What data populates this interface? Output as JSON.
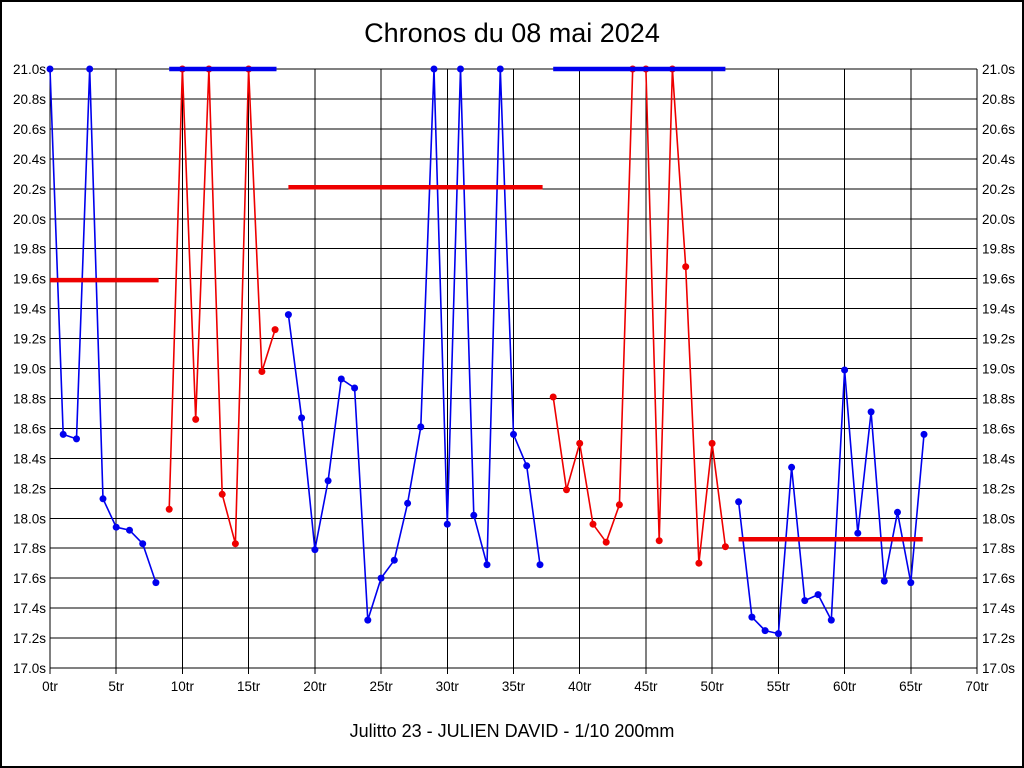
{
  "page": {
    "title": "Chronos du 08 mai 2024",
    "footer": "Julitto 23 - JULIEN DAVID - 1/10 200mm"
  },
  "colors": {
    "blue": "#0000ee",
    "red": "#ee0000",
    "grid": "#000000",
    "text": "#000000",
    "background": "#ffffff"
  },
  "chart_data": {
    "type": "line",
    "title": "Chronos du 08 mai 2024",
    "x_unit": "tr",
    "y_unit": "s",
    "xlim": [
      0,
      70
    ],
    "ylim": [
      17.0,
      21.0
    ],
    "grid": true,
    "legend": "none",
    "x_ticks": [
      0,
      5,
      10,
      15,
      20,
      25,
      30,
      35,
      40,
      45,
      50,
      55,
      60,
      65,
      70
    ],
    "x_tick_labels": [
      "0tr",
      "5tr",
      "10tr",
      "15tr",
      "20tr",
      "25tr",
      "30tr",
      "35tr",
      "40tr",
      "45tr",
      "50tr",
      "55tr",
      "60tr",
      "65tr",
      "70tr"
    ],
    "y_ticks": [
      21.0,
      20.8,
      20.6,
      20.4,
      20.2,
      20.0,
      19.8,
      19.6,
      19.4,
      19.2,
      19.0,
      18.8,
      18.6,
      18.4,
      18.2,
      18.0,
      17.8,
      17.6,
      17.4,
      17.2,
      17.0
    ],
    "y_tick_labels": [
      "21.0s",
      "20.8s",
      "20.6s",
      "20.4s",
      "20.2s",
      "20.0s",
      "19.8s",
      "19.6s",
      "19.4s",
      "19.2s",
      "19.0s",
      "18.8s",
      "18.6s",
      "18.4s",
      "18.2s",
      "18.0s",
      "17.8s",
      "17.6s",
      "17.4s",
      "17.2s",
      "17.0s"
    ],
    "series": [
      {
        "name": "stint-1-blue",
        "color": "blue",
        "points": [
          [
            0,
            21.0
          ],
          [
            1,
            18.56
          ],
          [
            2,
            18.53
          ],
          [
            3,
            21.0
          ],
          [
            4,
            18.13
          ],
          [
            5,
            17.94
          ],
          [
            6,
            17.92
          ],
          [
            7,
            17.83
          ],
          [
            8,
            17.57
          ]
        ]
      },
      {
        "name": "stint-2-red",
        "color": "red",
        "points": [
          [
            9,
            18.06
          ],
          [
            10,
            21.0
          ],
          [
            11,
            18.66
          ],
          [
            12,
            21.0
          ],
          [
            13,
            18.16
          ],
          [
            14,
            17.83
          ],
          [
            15,
            21.0
          ],
          [
            16,
            18.98
          ],
          [
            17,
            19.26
          ]
        ]
      },
      {
        "name": "stint-3-blue",
        "color": "blue",
        "points": [
          [
            18,
            19.36
          ],
          [
            19,
            18.67
          ],
          [
            20,
            17.79
          ],
          [
            21,
            18.25
          ],
          [
            22,
            18.93
          ],
          [
            23,
            18.87
          ],
          [
            24,
            17.32
          ],
          [
            25,
            17.6
          ],
          [
            26,
            17.72
          ],
          [
            27,
            18.1
          ],
          [
            28,
            18.61
          ],
          [
            29,
            21.0
          ],
          [
            30,
            17.96
          ],
          [
            31,
            21.0
          ],
          [
            32,
            18.02
          ],
          [
            33,
            17.69
          ],
          [
            34,
            21.0
          ],
          [
            35,
            18.56
          ],
          [
            36,
            18.35
          ],
          [
            37,
            17.69
          ]
        ]
      },
      {
        "name": "stint-4-red",
        "color": "red",
        "points": [
          [
            38,
            18.81
          ],
          [
            39,
            18.19
          ],
          [
            40,
            18.5
          ],
          [
            41,
            17.96
          ],
          [
            42,
            17.84
          ],
          [
            43,
            18.09
          ],
          [
            44,
            21.0
          ],
          [
            45,
            21.0
          ],
          [
            46,
            17.85
          ],
          [
            47,
            21.0
          ],
          [
            48,
            19.68
          ],
          [
            49,
            17.7
          ],
          [
            50,
            18.5
          ],
          [
            51,
            17.81
          ]
        ]
      },
      {
        "name": "stint-5-blue",
        "color": "blue",
        "points": [
          [
            52,
            18.11
          ],
          [
            53,
            17.34
          ],
          [
            54,
            17.25
          ],
          [
            55,
            17.23
          ],
          [
            56,
            18.34
          ],
          [
            57,
            17.45
          ],
          [
            58,
            17.49
          ],
          [
            59,
            17.32
          ],
          [
            60,
            18.99
          ],
          [
            61,
            17.9
          ],
          [
            62,
            18.71
          ],
          [
            63,
            17.58
          ],
          [
            64,
            18.04
          ],
          [
            65,
            17.57
          ],
          [
            66,
            18.56
          ]
        ]
      }
    ],
    "average_lines": [
      {
        "name": "average-stint-1",
        "color": "red",
        "y": 19.59,
        "x0": 0.0,
        "x1": 8.2
      },
      {
        "name": "average-stint-2",
        "color": "blue",
        "y": 21.0,
        "x0": 9.0,
        "x1": 17.1
      },
      {
        "name": "average-stint-3",
        "color": "red",
        "y": 20.21,
        "x0": 18.0,
        "x1": 37.2
      },
      {
        "name": "average-stint-4",
        "color": "blue",
        "y": 21.0,
        "x0": 38.0,
        "x1": 51.0
      },
      {
        "name": "average-stint-5",
        "color": "red",
        "y": 17.86,
        "x0": 52.0,
        "x1": 65.9
      }
    ]
  }
}
